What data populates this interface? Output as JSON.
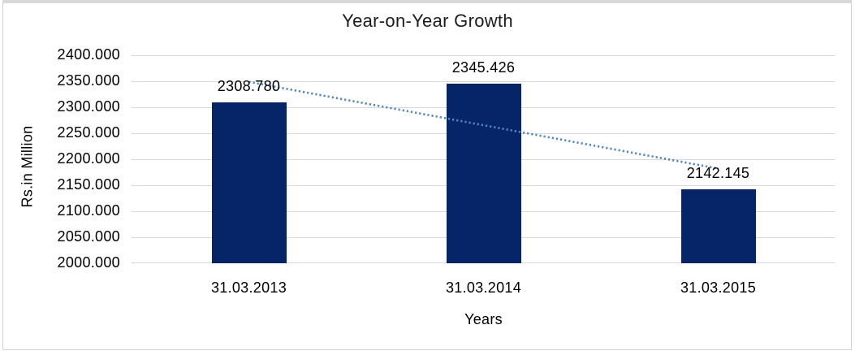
{
  "window": {
    "background": "#ffffff",
    "border_color": "#d0d0d0",
    "border_top_color": "#d9d9d9"
  },
  "chart_data": {
    "type": "bar",
    "title": "Year-on-Year Growth",
    "xlabel": "Years",
    "ylabel": "Rs.in Million",
    "categories": [
      "31.03.2013",
      "31.03.2014",
      "31.03.2015"
    ],
    "values": [
      2308.78,
      2345.426,
      2142.145
    ],
    "data_labels": [
      "2308.780",
      "2345.426",
      "2142.145"
    ],
    "ylim": [
      2000,
      2400
    ],
    "ytick_step": 50,
    "ytick_labels": [
      "2400.000",
      "2350.000",
      "2300.000",
      "2250.000",
      "2200.000",
      "2150.000",
      "2100.000",
      "2050.000",
      "2000.000"
    ],
    "grid": true,
    "legend": "none",
    "bar_color": "#052568",
    "gridline_color": "#d9d9d9",
    "text_color": "#000000",
    "trendline": {
      "type": "linear",
      "style": "dotted",
      "color": "#4e87c8",
      "start_value": 2348.8,
      "end_value": 2182.1
    }
  }
}
